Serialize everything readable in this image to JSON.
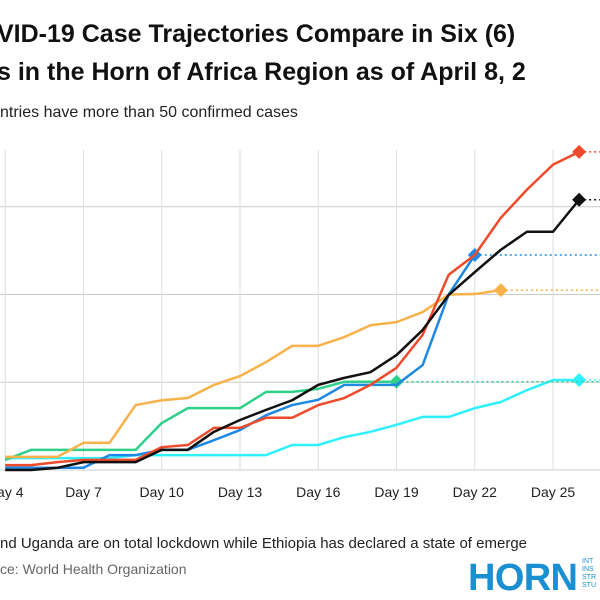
{
  "chart_data": {
    "type": "line",
    "title_lines": [
      "VID-19 Case Trajectories Compare in Six (6)",
      "s in the Horn of Africa Region as of April 8, 2"
    ],
    "subtitle": "ntries have more than 50 confirmed cases",
    "note": "nd Uganda are on total lockdown while Ethiopia has declared a state of emerge",
    "source": "ce: World Health Organization",
    "logo": {
      "text": "HORN",
      "side": [
        "INT",
        "INS",
        "STR",
        "STU"
      ]
    },
    "x": [
      4,
      5,
      6,
      7,
      8,
      9,
      10,
      11,
      12,
      13,
      14,
      15,
      16,
      17,
      18,
      19,
      20,
      21,
      22,
      23,
      24,
      25,
      26
    ],
    "xlim": [
      3.8,
      26.8
    ],
    "xticks": [
      {
        "value": 4,
        "label": "Day 4"
      },
      {
        "value": 7,
        "label": "Day 7"
      },
      {
        "value": 10,
        "label": "Day 10"
      },
      {
        "value": 13,
        "label": "Day 13"
      },
      {
        "value": 16,
        "label": "Day 16"
      },
      {
        "value": 19,
        "label": "Day 19"
      },
      {
        "value": 22,
        "label": "Day 22"
      },
      {
        "value": 25,
        "label": "Day 25"
      }
    ],
    "ylim": [
      0,
      80
    ],
    "yticks": [
      20,
      40,
      60
    ],
    "grid": true,
    "series": [
      {
        "color": "#2ff0ff",
        "values": [
          2.7,
          2.7,
          2.7,
          2.7,
          2.7,
          3.4,
          3.4,
          3.4,
          3.4,
          3.4,
          3.4,
          5.7,
          5.7,
          7.5,
          8.7,
          10.3,
          12.1,
          12.1,
          14.1,
          15.5,
          18.2,
          20.5,
          20.5
        ]
      },
      {
        "color": "#2fd08a",
        "values": [
          2.3,
          4.6,
          4.6,
          4.6,
          4.6,
          4.6,
          10.7,
          14.1,
          14.1,
          14.1,
          17.8,
          17.8,
          18.5,
          20.1,
          20.1,
          20.1,
          null,
          null,
          null,
          null,
          null,
          null,
          null
        ]
      },
      {
        "color": "#f8b24a",
        "values": [
          3,
          3,
          3,
          6.2,
          6.2,
          14.8,
          15.9,
          16.4,
          19.4,
          21.4,
          24.6,
          28.3,
          28.3,
          30.3,
          33,
          33.7,
          36,
          40,
          40.1,
          41,
          null,
          null,
          null
        ]
      },
      {
        "color": "#1e88e5",
        "values": [
          0.5,
          0.5,
          0.5,
          0.5,
          3.4,
          3.4,
          4.6,
          4.6,
          6.8,
          9.1,
          12.5,
          14.8,
          16,
          19.4,
          19.4,
          19.4,
          23.9,
          40,
          49,
          null,
          null,
          null,
          null
        ]
      },
      {
        "color": "#ee4b2b",
        "values": [
          1.1,
          1.1,
          1.8,
          2.3,
          2.3,
          2.3,
          5.2,
          5.7,
          9.6,
          9.6,
          11.9,
          11.9,
          14.8,
          16.4,
          19.4,
          23.3,
          30.8,
          44.5,
          49,
          57.5,
          63.9,
          69.6,
          72.5
        ]
      },
      {
        "color": "#111111",
        "values": [
          0,
          0,
          0.5,
          1.8,
          1.8,
          1.8,
          4.6,
          4.6,
          8.7,
          11.4,
          13.7,
          15.9,
          19.4,
          21,
          22.3,
          26.2,
          31.9,
          39.9,
          45.1,
          50.2,
          54.3,
          54.3,
          61.6
        ]
      }
    ]
  }
}
